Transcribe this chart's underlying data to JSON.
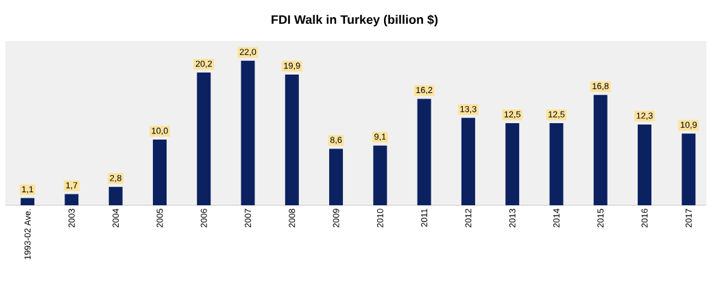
{
  "chart_data": {
    "type": "bar",
    "title": "FDI Walk in Turkey (billion $)",
    "categories": [
      "1993-02 Ave.",
      "2003",
      "2004",
      "2005",
      "2006",
      "2007",
      "2008",
      "2009",
      "2010",
      "2011",
      "2012",
      "2013",
      "2014",
      "2015",
      "2016",
      "2017"
    ],
    "values": [
      1.1,
      1.7,
      2.8,
      10.0,
      20.2,
      22.0,
      19.9,
      8.6,
      9.1,
      16.2,
      13.3,
      12.5,
      12.5,
      16.8,
      12.3,
      10.9
    ],
    "value_labels": [
      "1,1",
      "1,7",
      "2,8",
      "10,0",
      "20,2",
      "22,0",
      "19,9",
      "8,6",
      "9,1",
      "16,2",
      "13,3",
      "12,5",
      "12,5",
      "16,8",
      "12,3",
      "10,9"
    ],
    "color": "#0c215f",
    "ylim": [
      0,
      25
    ],
    "tick_labels": "x",
    "grid": false
  }
}
